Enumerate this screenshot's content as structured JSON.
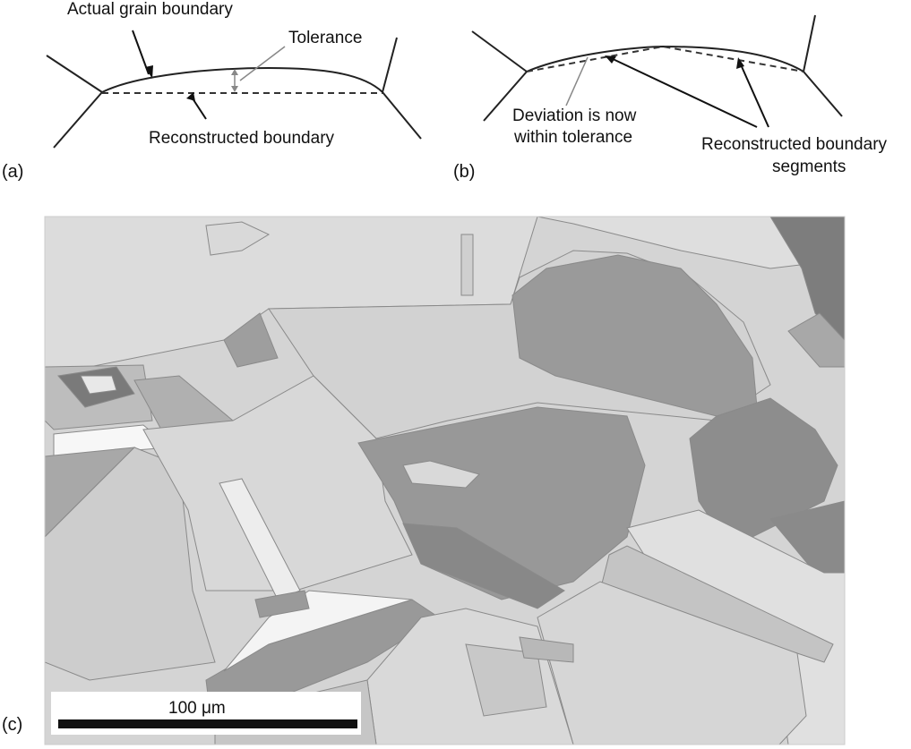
{
  "panel_a": {
    "label": "(a)",
    "actual_boundary_label": "Actual grain boundary",
    "tolerance_label": "Tolerance",
    "reconstructed_label": "Reconstructed boundary"
  },
  "panel_b": {
    "label": "(b)",
    "deviation_line1": "Deviation is now",
    "deviation_line2": "within tolerance",
    "segments_line1": "Reconstructed boundary",
    "segments_line2": "segments"
  },
  "panel_c": {
    "label": "(c)",
    "scale_bar_label": "100 μm"
  },
  "colors": {
    "line": "#222222",
    "dashed": "#333333",
    "grain_light": "#dcdcdc",
    "grain_mid": "#bdbdbd",
    "grain_dark": "#8c8c8c",
    "grain_white": "#f6f6f6"
  }
}
